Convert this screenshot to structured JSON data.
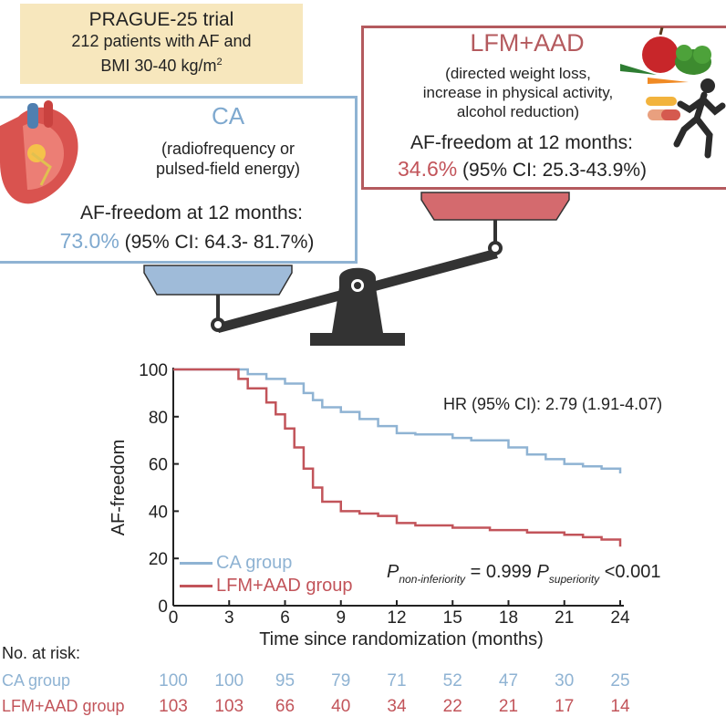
{
  "colors": {
    "ca": "#8fb3d3",
    "lfm": "#c2545a",
    "box_fill": "#f7e7bd"
  },
  "trial": {
    "title": "PRAGUE-25 trial",
    "line1": "212 patients with AF and",
    "line2_prefix": "BMI 30-40 kg/m",
    "line2_sup": "2"
  },
  "ca": {
    "title": "CA",
    "desc1": "(radiofrequency or",
    "desc2": "pulsed-field energy)",
    "af_label": "AF-freedom at 12 months:",
    "pct": "73.0%",
    "ci": " (95% CI: 64.3- 81.7%)"
  },
  "lfm": {
    "title": "LFM+AAD",
    "desc1": "(directed weight loss,",
    "desc2": "increase in physical activity,",
    "desc3": "alcohol reduction)",
    "af_label": "AF-freedom at 12 months:",
    "pct": "34.6%",
    "ci": " (95% CI: 25.3-43.9%)"
  },
  "icons": [
    "heart-icon",
    "fruit-vegetable-icon",
    "pills-icon",
    "runner-icon",
    "balance-scale-icon"
  ],
  "chart_data": {
    "type": "line",
    "title": "",
    "xlabel": "Time since randomization (months)",
    "ylabel": "AF-freedom",
    "xlim": [
      0,
      24
    ],
    "ylim": [
      0,
      100
    ],
    "x_ticks": [
      0,
      3,
      6,
      9,
      12,
      15,
      18,
      21,
      24
    ],
    "y_ticks": [
      0,
      20,
      40,
      60,
      80,
      100
    ],
    "series": [
      {
        "name": "CA group",
        "color": "#8fb3d3",
        "points": [
          [
            0,
            100
          ],
          [
            3,
            100
          ],
          [
            4,
            98
          ],
          [
            5,
            96
          ],
          [
            6,
            94
          ],
          [
            7,
            90
          ],
          [
            7.5,
            87
          ],
          [
            8,
            84
          ],
          [
            9,
            82
          ],
          [
            10,
            79
          ],
          [
            11,
            76
          ],
          [
            12,
            73
          ],
          [
            13,
            72.5
          ],
          [
            15,
            71
          ],
          [
            16,
            70
          ],
          [
            18,
            67
          ],
          [
            19,
            64
          ],
          [
            20,
            62
          ],
          [
            21,
            60
          ],
          [
            22,
            59
          ],
          [
            23,
            58
          ],
          [
            24,
            57
          ],
          [
            24,
            56
          ]
        ]
      },
      {
        "name": "LFM+AAD group",
        "color": "#c2545a",
        "points": [
          [
            0,
            100
          ],
          [
            3,
            100
          ],
          [
            3.5,
            96
          ],
          [
            4,
            92
          ],
          [
            5,
            86
          ],
          [
            5.5,
            81
          ],
          [
            6,
            75
          ],
          [
            6.5,
            67
          ],
          [
            7,
            58
          ],
          [
            7.5,
            50
          ],
          [
            8,
            44
          ],
          [
            9,
            40
          ],
          [
            10,
            39
          ],
          [
            11,
            38
          ],
          [
            12,
            35
          ],
          [
            13,
            34
          ],
          [
            15,
            33
          ],
          [
            17,
            32
          ],
          [
            19,
            31
          ],
          [
            21,
            30
          ],
          [
            22,
            29
          ],
          [
            23,
            28
          ],
          [
            24,
            26
          ],
          [
            24,
            25
          ]
        ]
      }
    ],
    "annotations": {
      "hr": "HR (95% CI): 2.79 (1.91-4.07)",
      "p_label": "P",
      "p_noninf_sub": "non-inferiority",
      "p_noninf_val": " = 0.999 ",
      "p_sup_sub": "superiority",
      "p_sup_val": " <0.001"
    },
    "legend": [
      "CA group",
      "LFM+AAD group"
    ],
    "legend_position": "bottom-left"
  },
  "risk_table": {
    "title": "No. at risk:",
    "rows": [
      {
        "name": "CA group",
        "values": [
          "100",
          "100",
          "95",
          "79",
          "71",
          "52",
          "47",
          "30",
          "25"
        ]
      },
      {
        "name": "LFM+AAD group",
        "values": [
          "103",
          "103",
          "66",
          "40",
          "34",
          "22",
          "21",
          "17",
          "14"
        ]
      }
    ]
  }
}
